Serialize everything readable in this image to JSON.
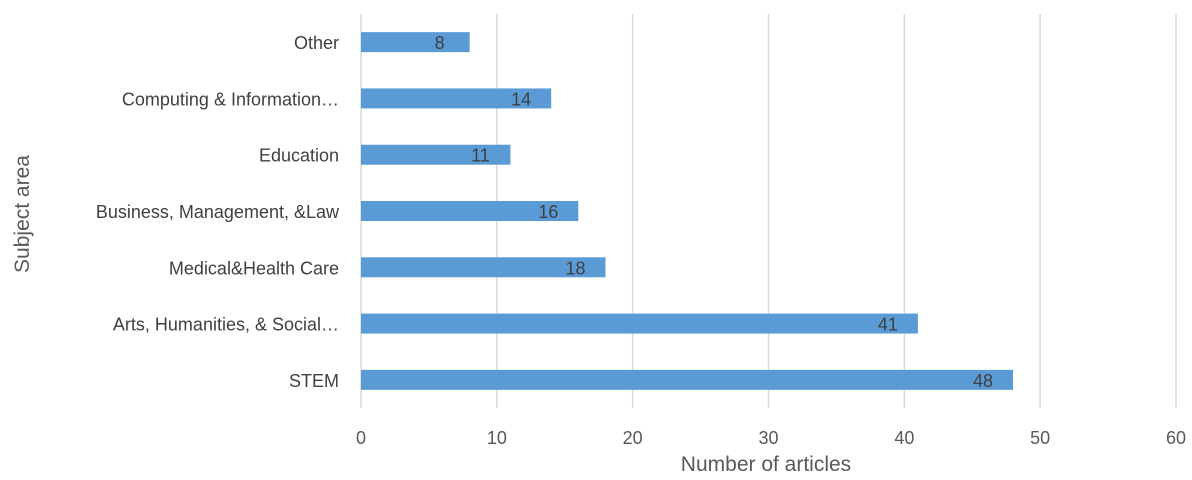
{
  "chart_data": {
    "type": "bar",
    "orientation": "horizontal",
    "title": "",
    "xlabel": "Number of articles",
    "ylabel": "Subject area",
    "categories": [
      "STEM",
      "Arts, Humanities, & Social…",
      "Medical&Health Care",
      "Business, Management, &Law",
      "Education",
      "Computing & Information…",
      "Other"
    ],
    "values": [
      48,
      41,
      18,
      16,
      11,
      14,
      8
    ],
    "xlim": [
      0,
      60
    ],
    "xticks": [
      "0",
      "10",
      "20",
      "30",
      "40",
      "50",
      "60"
    ],
    "grid": true,
    "data_labels": true,
    "bar_color": "#5b9bd5",
    "grid_color": "#d9d9d9"
  }
}
